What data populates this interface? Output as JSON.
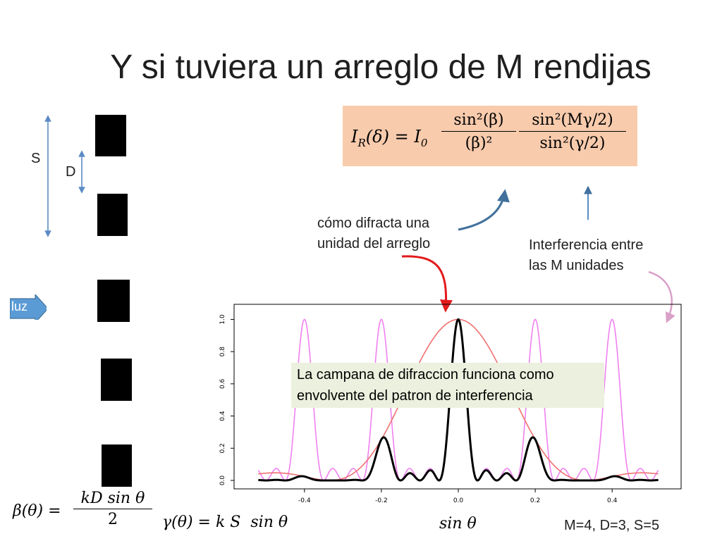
{
  "slide": {
    "title": "Y si tuviera un arreglo de M rendijas",
    "formula": {
      "lhs": "I",
      "lhs_sub": "R",
      "lhs_arg": "(δ) = I",
      "lhs_sub0": "0",
      "num1": "sin²(β)",
      "den1": "(β)²",
      "num2": "sin²(Mγ/2)",
      "den2": "sin²(γ/2)"
    },
    "labels": {
      "S": "S",
      "D": "D",
      "luz": "luz",
      "diffraction_line1": "cómo difracta una",
      "diffraction_line2": "unidad del arreglo",
      "interference_line1": "Interferencia entre",
      "interference_line2": "las M unidades",
      "callout_line1": "La campana de difraccion funciona como",
      "callout_line2": "envolvente del patron de interferencia",
      "params": "M=4, D=3, S=5"
    },
    "bottom_formulas": {
      "beta_lhs": "β(θ) =",
      "beta_num": "kD sin θ",
      "beta_den": "2",
      "gamma": "γ(θ) = k S  sin θ",
      "xvar": "sin θ"
    },
    "colors": {
      "formula_bg": "#f8cbad",
      "arrow_blue": "#41719c",
      "arrow_red": "#e31a1c",
      "arrow_pink": "#d9a0c8",
      "interference": "#f080f0",
      "envelope": "#f07070",
      "product": "#000000"
    }
  },
  "chart_data": {
    "type": "line",
    "xlabel": "",
    "ylabel": "",
    "xlim": [
      -0.55,
      0.55
    ],
    "ylim": [
      0,
      1.05
    ],
    "x_ticks": [
      -0.4,
      -0.2,
      0.0,
      0.2,
      0.4
    ],
    "x_tick_labels": [
      "-0.4",
      "-0.2",
      "0.0",
      "0.2",
      "0.4"
    ],
    "y_ticks": [
      0.0,
      0.2,
      0.4,
      0.6,
      0.8,
      1.0
    ],
    "y_tick_labels": [
      "0.0",
      "0.2",
      "0.4",
      "0.6",
      "0.8",
      "1.0"
    ],
    "grid": false,
    "parameters": {
      "M": 4,
      "D": 3,
      "S": 5
    },
    "series": [
      {
        "key": "interference",
        "x_range": [
          -0.52,
          0.52
        ],
        "formula": "sin²(Mγ/2)/(M² sin²(γ/2)), γ = k S sinθ"
      },
      {
        "key": "envelope",
        "x_range": [
          -0.52,
          0.52
        ],
        "formula": "sin²(β)/β², β = k D sinθ / 2"
      },
      {
        "key": "product",
        "x_range": [
          -0.52,
          0.52
        ],
        "formula": "envelope × interference"
      }
    ]
  }
}
